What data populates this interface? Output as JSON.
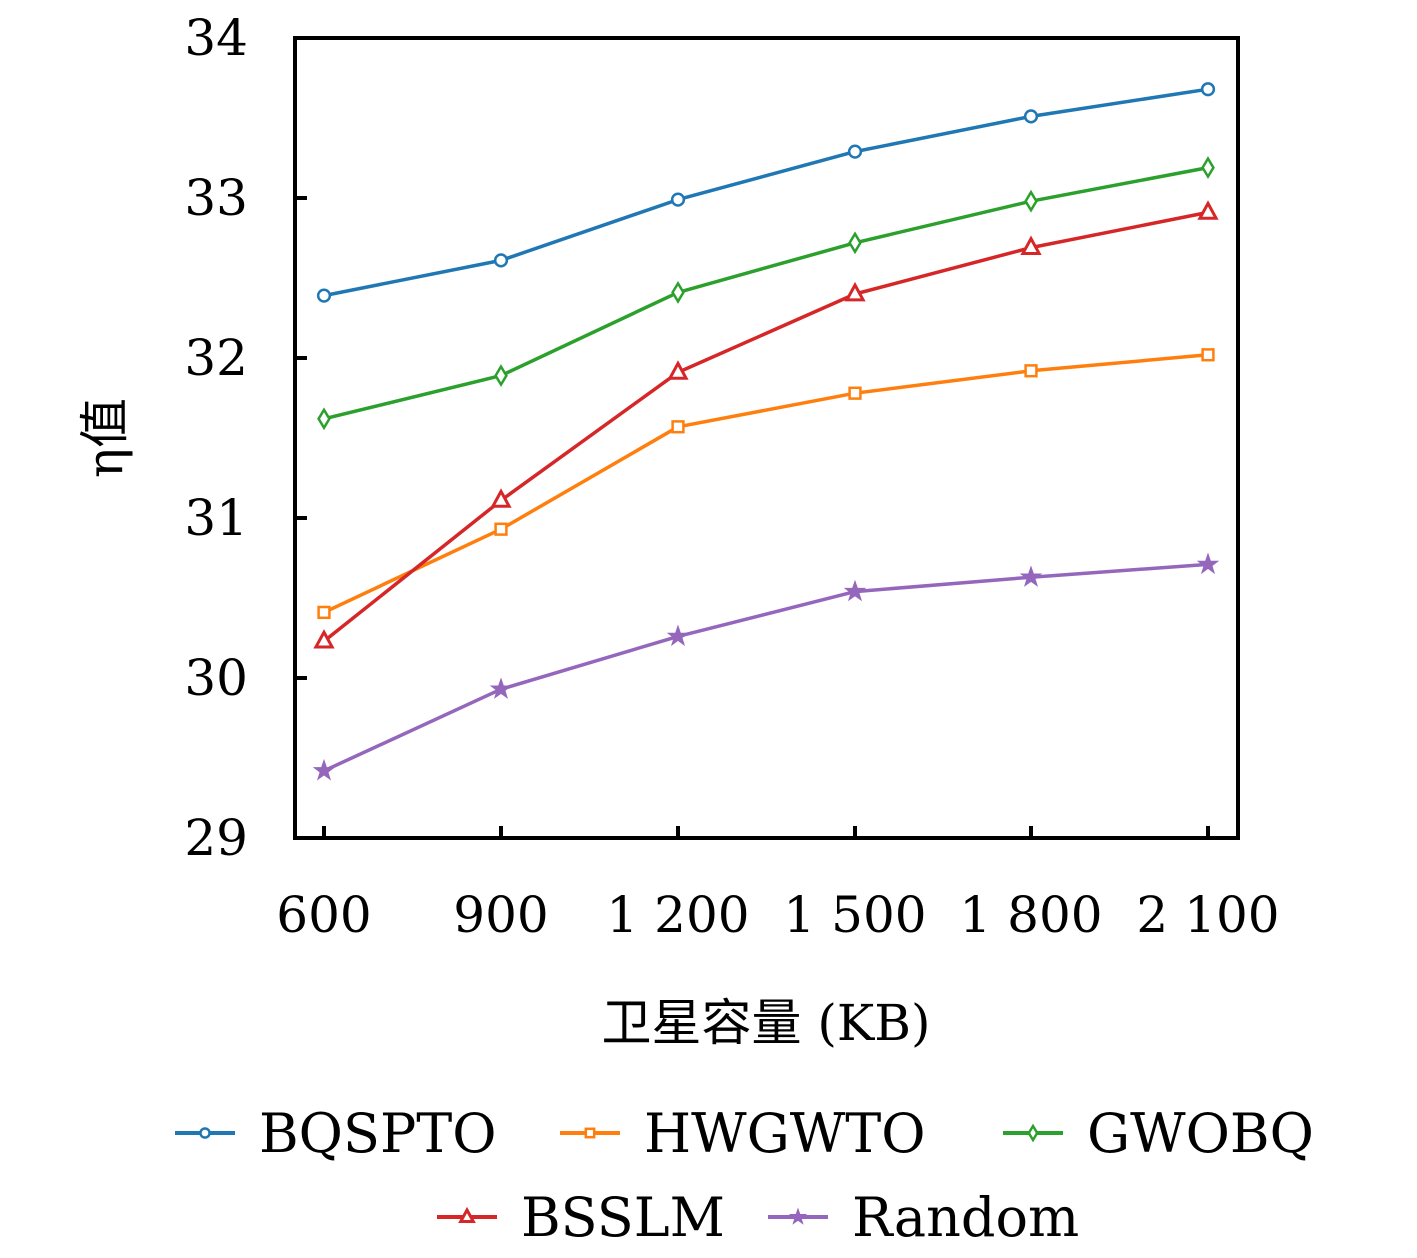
{
  "chart_data": {
    "type": "line",
    "title": "",
    "xlabel": "卫星容量 (KB)",
    "ylabel": "η值",
    "categories": [
      "600",
      "900",
      "1 200",
      "1 500",
      "1 800",
      "2 100"
    ],
    "x": [
      600,
      900,
      1200,
      1500,
      1800,
      2100
    ],
    "ylim": [
      29,
      34
    ],
    "yticks": [
      "29",
      "30",
      "31",
      "32",
      "33",
      "34"
    ],
    "grid": false,
    "legend_position": "bottom",
    "series": [
      {
        "name": "BQSPTO",
        "color": "#1f77b4",
        "marker": "circle",
        "values": [
          32.39,
          32.61,
          32.99,
          33.29,
          33.51,
          33.68
        ]
      },
      {
        "name": "HWGWTO",
        "color": "#ff7f0e",
        "marker": "square",
        "values": [
          30.41,
          30.93,
          31.57,
          31.78,
          31.92,
          32.02
        ]
      },
      {
        "name": "GWOBQ",
        "color": "#2ca02c",
        "marker": "diamond",
        "values": [
          31.62,
          31.89,
          32.41,
          32.72,
          32.98,
          33.19
        ]
      },
      {
        "name": "BSSLM",
        "color": "#d62728",
        "marker": "triangle",
        "values": [
          30.23,
          31.11,
          31.91,
          32.4,
          32.69,
          32.91
        ]
      },
      {
        "name": "Random",
        "color": "#9467bd",
        "marker": "star",
        "values": [
          29.42,
          29.93,
          30.26,
          30.54,
          30.63,
          30.71
        ]
      }
    ]
  }
}
